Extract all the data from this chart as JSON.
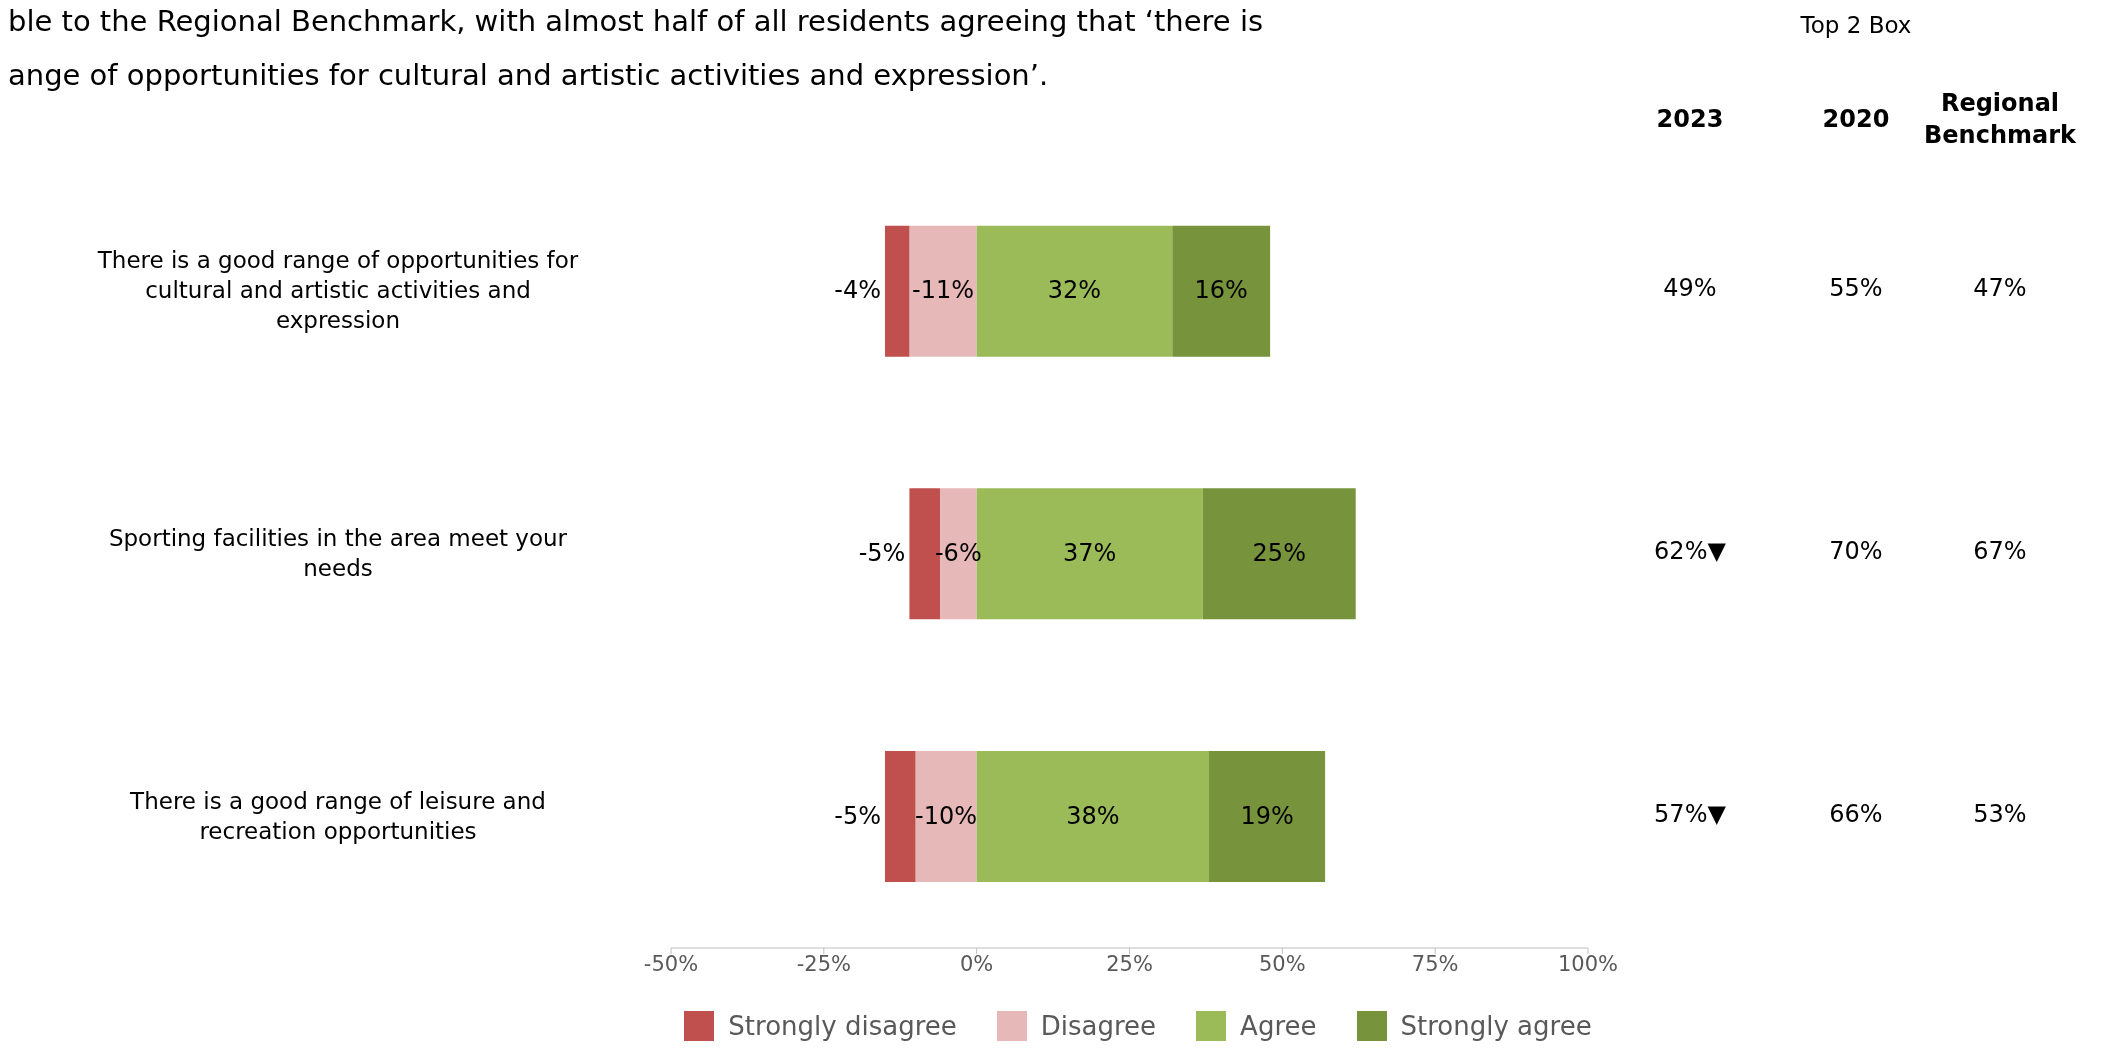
{
  "chart_data": {
    "type": "bar",
    "orientation": "horizontal",
    "stacked": true,
    "title": "ble to the Regional Benchmark, with almost half of all residents agreeing that ‘there is\nange of opportunities for cultural and artistic activities and expression’.",
    "categories": [
      "There is a good range of opportunities for cultural and artistic activities and expression",
      "Sporting facilities in the area meet your needs",
      "There is a good range of leisure and recreation opportunities"
    ],
    "series": [
      {
        "name": "Strongly disagree",
        "color": "#c0504d",
        "values": [
          -4,
          -5,
          -5
        ],
        "value_labels": [
          "-4%",
          "-5%",
          "-5%"
        ]
      },
      {
        "name": "Disagree",
        "color": "#e6b9b8",
        "values": [
          -11,
          -6,
          -10
        ],
        "value_labels": [
          "-11%",
          "-6%",
          "-10%"
        ]
      },
      {
        "name": "Agree",
        "color": "#9bbb59",
        "values": [
          32,
          37,
          38
        ],
        "value_labels": [
          "32%",
          "37%",
          "38%"
        ]
      },
      {
        "name": "Strongly agree",
        "color": "#77933c",
        "values": [
          16,
          25,
          19
        ],
        "value_labels": [
          "16%",
          "25%",
          "19%"
        ]
      }
    ],
    "xlim": [
      -50,
      100
    ],
    "xticks": [
      {
        "value": -50,
        "label": "-50%"
      },
      {
        "value": -25,
        "label": "-25%"
      },
      {
        "value": 0,
        "label": "0%"
      },
      {
        "value": 25,
        "label": "25%"
      },
      {
        "value": 50,
        "label": "50%"
      },
      {
        "value": 75,
        "label": "75%"
      },
      {
        "value": 100,
        "label": "100%"
      }
    ],
    "legend": "bottom",
    "grid": false,
    "annotations": [
      "Top 2 Box",
      "2023",
      "2020",
      "Regional Benchmark",
      "49%",
      "55%",
      "47%",
      "62%▼",
      "70%",
      "67%",
      "57%▼",
      "66%",
      "53%"
    ]
  }
}
